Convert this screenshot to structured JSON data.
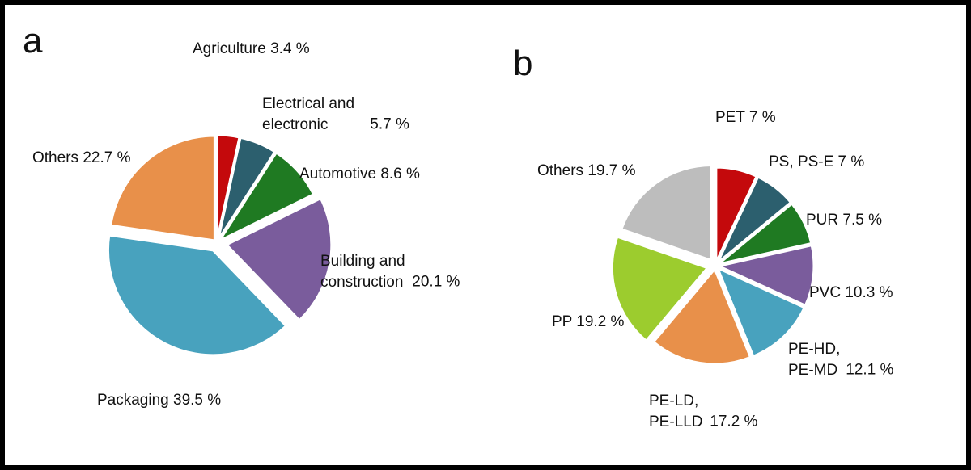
{
  "chart_data": [
    {
      "type": "pie",
      "title": "a",
      "categories": [
        "Agriculture",
        "Electrical and electronic",
        "Automotive",
        "Building and construction",
        "Packaging",
        "Others"
      ],
      "values": [
        3.4,
        5.7,
        8.6,
        20.1,
        39.5,
        22.7
      ],
      "value_labels": [
        "3.4 %",
        "5.7 %",
        "8.6 %",
        "20.1 %",
        "39.5 %",
        "22.7 %"
      ],
      "colors": [
        "#c4090c",
        "#2c5f6e",
        "#1f7a22",
        "#7a5c9c",
        "#48a2be",
        "#e8904a"
      ]
    },
    {
      "type": "pie",
      "title": "b",
      "categories": [
        "PET",
        "PS, PS-E",
        "PUR",
        "PVC",
        "PE-HD, PE-MD",
        "PE-LD, PE-LLD",
        "PP",
        "Others"
      ],
      "values": [
        7,
        7,
        7.5,
        10.3,
        12.1,
        17.2,
        19.2,
        19.7
      ],
      "value_labels": [
        "7 %",
        "7 %",
        "7.5 %",
        "10.3 %",
        "12.1 %",
        "17.2 %",
        "19.2 %",
        "19.7 %"
      ],
      "colors": [
        "#c4090c",
        "#2c5f6e",
        "#1f7a22",
        "#7a5c9c",
        "#48a2be",
        "#e8904a",
        "#9ccc2e",
        "#bdbdbd"
      ]
    }
  ]
}
